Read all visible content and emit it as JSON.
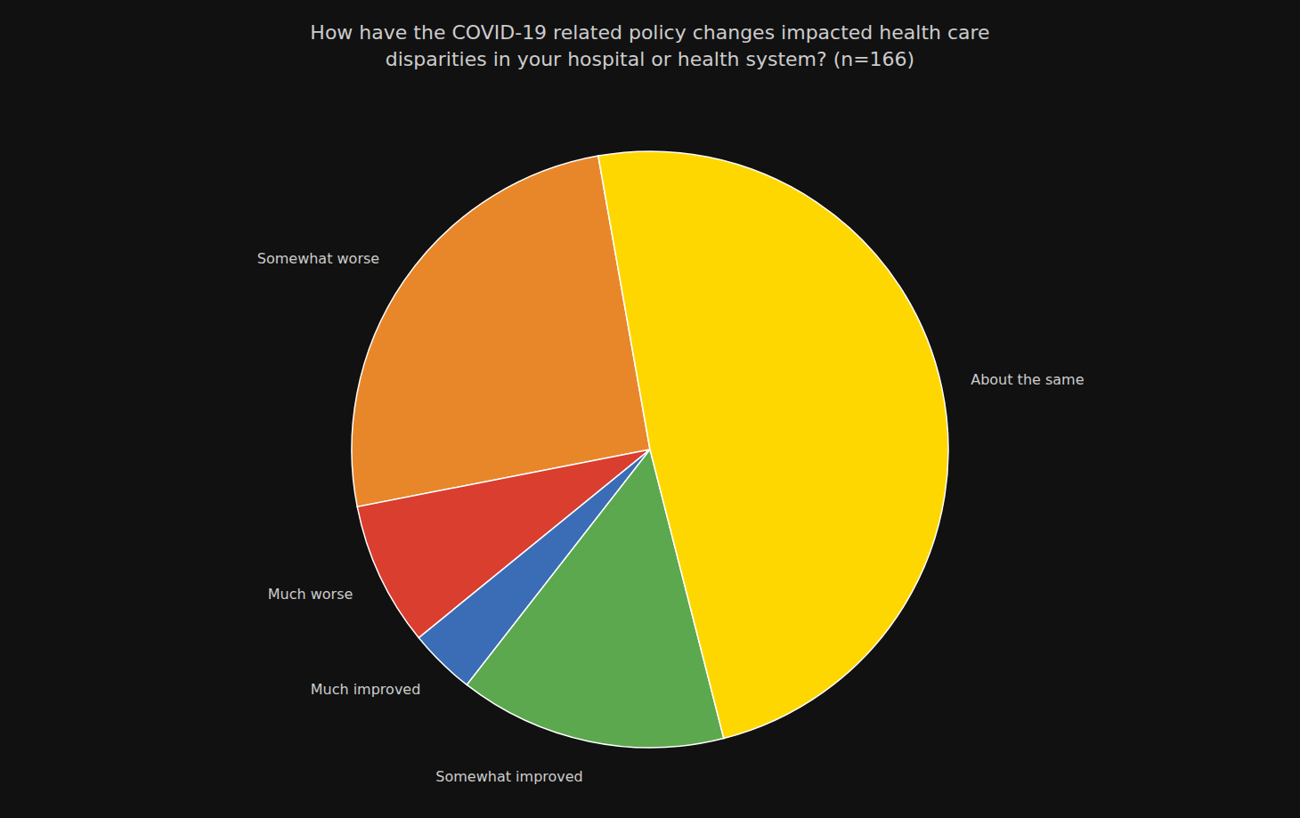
{
  "chart_data": {
    "type": "pie",
    "title": "How have the COVID-19 related policy changes impacted health care\ndisparities in your hospital or health system? (n=166)",
    "categories": [
      "Somewhat worse",
      "Much worse",
      "Much improved",
      "Somewhat improved",
      "About the same"
    ],
    "values": [
      25.3,
      7.8,
      3.6,
      14.5,
      48.8
    ],
    "colors": [
      "#E8872A",
      "#D93E2F",
      "#3A6DB5",
      "#5BA84E",
      "#FFD700"
    ]
  }
}
